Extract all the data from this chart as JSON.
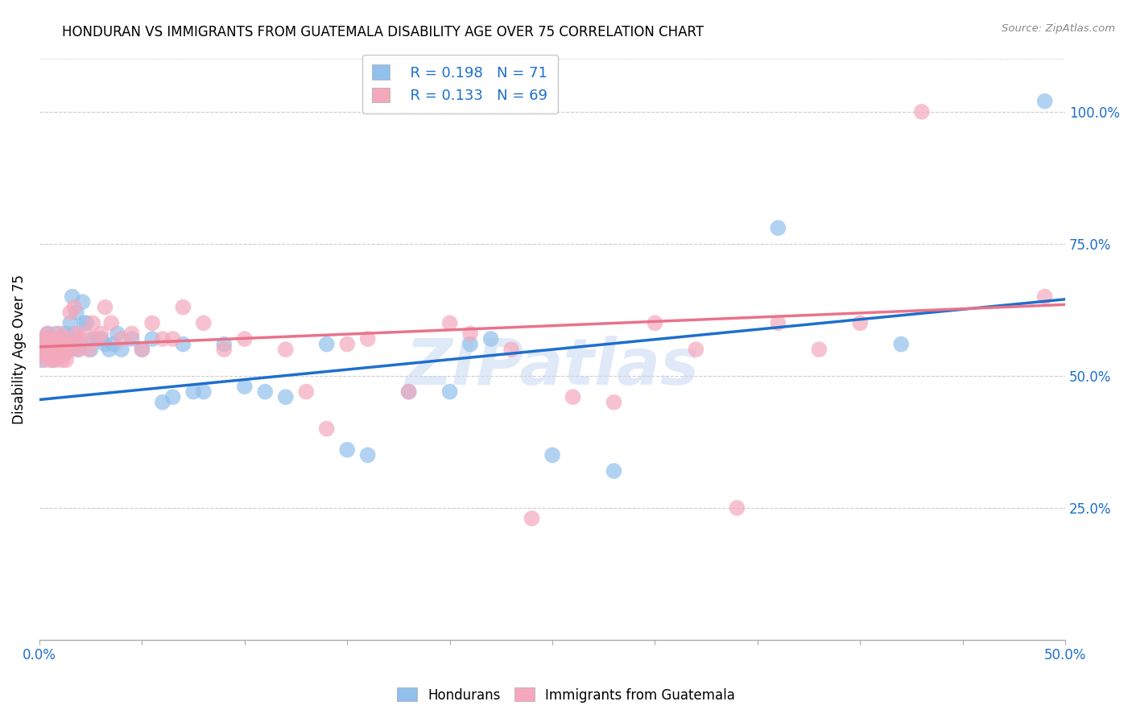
{
  "title": "HONDURAN VS IMMIGRANTS FROM GUATEMALA DISABILITY AGE OVER 75 CORRELATION CHART",
  "source": "Source: ZipAtlas.com",
  "ylabel": "Disability Age Over 75",
  "legend_blue_r": "R = 0.198",
  "legend_blue_n": "N = 71",
  "legend_pink_r": "R = 0.133",
  "legend_pink_n": "N = 69",
  "legend_blue_label": "Hondurans",
  "legend_pink_label": "Immigrants from Guatemala",
  "blue_color": "#92C0EC",
  "pink_color": "#F5A8BC",
  "trendline_blue": "#1E6FCC",
  "trendline_pink": "#E8738A",
  "watermark": "ZIPatlas",
  "blue_x": [
    0.001,
    0.002,
    0.002,
    0.003,
    0.003,
    0.004,
    0.004,
    0.005,
    0.005,
    0.006,
    0.006,
    0.007,
    0.007,
    0.008,
    0.008,
    0.009,
    0.009,
    0.01,
    0.01,
    0.01,
    0.011,
    0.011,
    0.012,
    0.012,
    0.013,
    0.013,
    0.014,
    0.014,
    0.015,
    0.015,
    0.016,
    0.017,
    0.018,
    0.019,
    0.02,
    0.021,
    0.022,
    0.023,
    0.025,
    0.026,
    0.028,
    0.03,
    0.032,
    0.034,
    0.036,
    0.038,
    0.04,
    0.045,
    0.05,
    0.055,
    0.06,
    0.065,
    0.07,
    0.075,
    0.08,
    0.09,
    0.1,
    0.11,
    0.12,
    0.14,
    0.15,
    0.16,
    0.18,
    0.2,
    0.21,
    0.22,
    0.25,
    0.28,
    0.36,
    0.42,
    0.49
  ],
  "blue_y": [
    0.53,
    0.55,
    0.57,
    0.54,
    0.56,
    0.55,
    0.58,
    0.54,
    0.57,
    0.53,
    0.56,
    0.55,
    0.54,
    0.56,
    0.58,
    0.54,
    0.56,
    0.55,
    0.57,
    0.54,
    0.56,
    0.55,
    0.57,
    0.54,
    0.58,
    0.55,
    0.57,
    0.55,
    0.6,
    0.56,
    0.65,
    0.58,
    0.62,
    0.55,
    0.56,
    0.64,
    0.6,
    0.6,
    0.55,
    0.57,
    0.57,
    0.57,
    0.56,
    0.55,
    0.56,
    0.58,
    0.55,
    0.57,
    0.55,
    0.57,
    0.45,
    0.46,
    0.56,
    0.47,
    0.47,
    0.56,
    0.48,
    0.47,
    0.46,
    0.56,
    0.36,
    0.35,
    0.47,
    0.47,
    0.56,
    0.57,
    0.35,
    0.32,
    0.78,
    0.56,
    1.02
  ],
  "pink_x": [
    0.001,
    0.002,
    0.002,
    0.003,
    0.003,
    0.004,
    0.004,
    0.005,
    0.005,
    0.006,
    0.006,
    0.007,
    0.007,
    0.008,
    0.008,
    0.009,
    0.009,
    0.01,
    0.01,
    0.011,
    0.011,
    0.012,
    0.012,
    0.013,
    0.013,
    0.014,
    0.015,
    0.016,
    0.017,
    0.018,
    0.019,
    0.02,
    0.022,
    0.024,
    0.026,
    0.028,
    0.03,
    0.032,
    0.035,
    0.04,
    0.045,
    0.05,
    0.055,
    0.06,
    0.065,
    0.07,
    0.08,
    0.09,
    0.1,
    0.12,
    0.13,
    0.14,
    0.15,
    0.16,
    0.18,
    0.2,
    0.21,
    0.23,
    0.24,
    0.26,
    0.28,
    0.3,
    0.32,
    0.34,
    0.36,
    0.38,
    0.4,
    0.43,
    0.49
  ],
  "pink_y": [
    0.54,
    0.55,
    0.57,
    0.53,
    0.56,
    0.55,
    0.58,
    0.54,
    0.56,
    0.53,
    0.57,
    0.55,
    0.54,
    0.56,
    0.53,
    0.57,
    0.55,
    0.54,
    0.58,
    0.53,
    0.56,
    0.55,
    0.54,
    0.57,
    0.53,
    0.56,
    0.62,
    0.55,
    0.63,
    0.58,
    0.55,
    0.57,
    0.58,
    0.55,
    0.6,
    0.57,
    0.58,
    0.63,
    0.6,
    0.57,
    0.58,
    0.55,
    0.6,
    0.57,
    0.57,
    0.63,
    0.6,
    0.55,
    0.57,
    0.55,
    0.47,
    0.4,
    0.56,
    0.57,
    0.47,
    0.6,
    0.58,
    0.55,
    0.23,
    0.46,
    0.45,
    0.6,
    0.55,
    0.25,
    0.6,
    0.55,
    0.6,
    1.0,
    0.65
  ],
  "xlim": [
    0,
    0.5
  ],
  "ylim": [
    0,
    1.1
  ],
  "ytick_vals": [
    0.25,
    0.5,
    0.75,
    1.0
  ],
  "ytick_labels": [
    "25.0%",
    "50.0%",
    "75.0%",
    "100.0%"
  ],
  "xtick_vals": [
    0.0,
    0.05,
    0.1,
    0.15,
    0.2,
    0.25,
    0.3,
    0.35,
    0.4,
    0.45,
    0.5
  ],
  "grid_color": "#CCCCCC",
  "axis_color": "#AAAAAA",
  "label_color": "#1E6FCC",
  "title_fontsize": 12,
  "tick_fontsize": 12
}
